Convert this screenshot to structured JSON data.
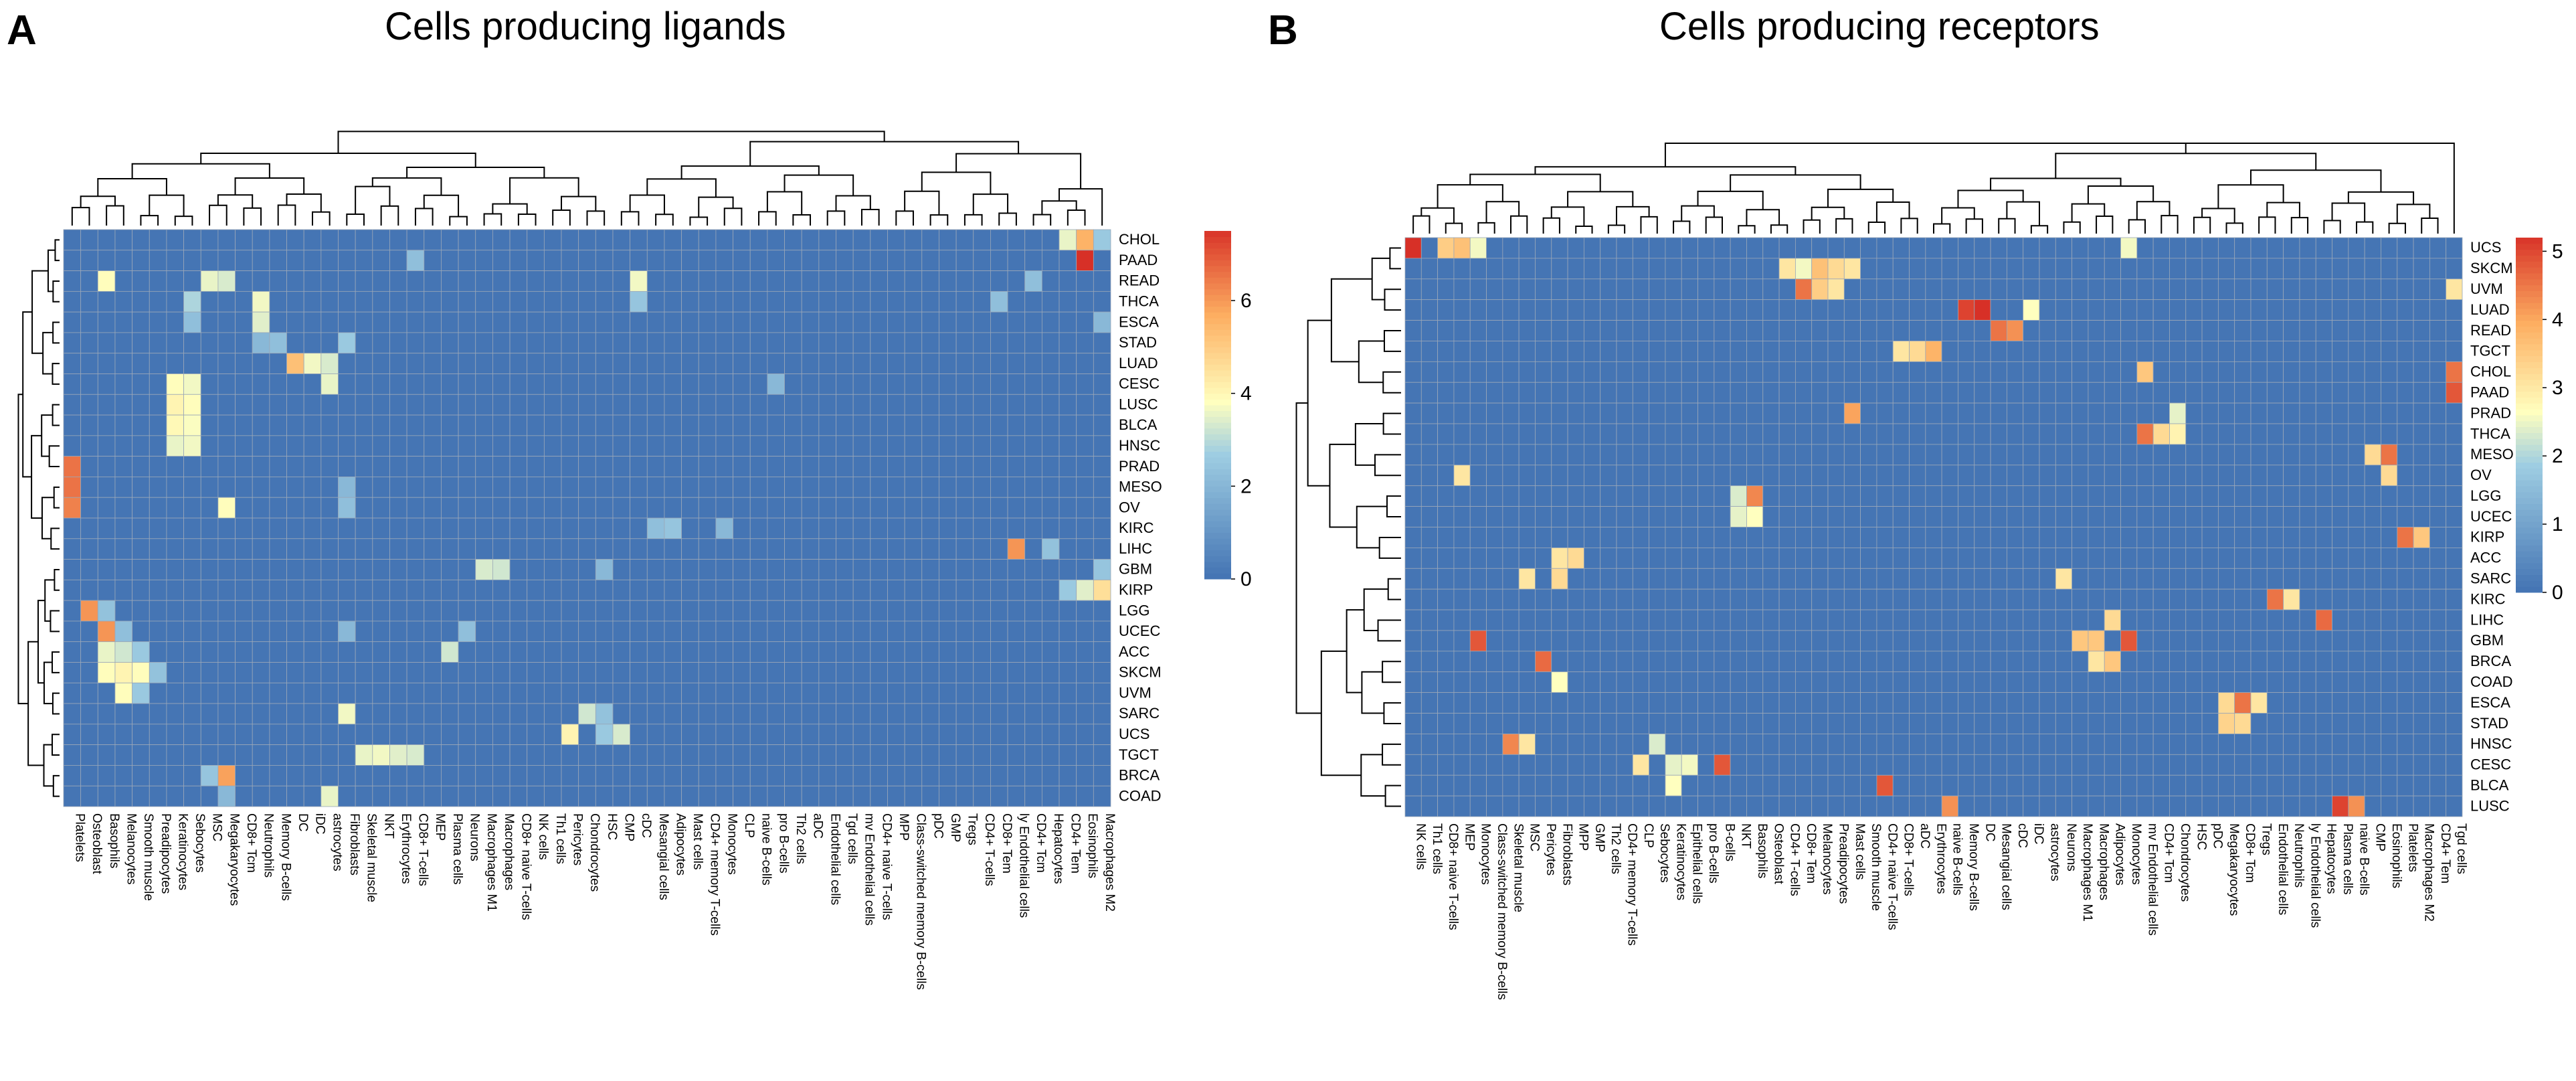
{
  "chart_data": [
    {
      "type": "heatmap",
      "panel_label": "A",
      "title": "Cells producing ligands",
      "rows": [
        "CHOL",
        "PAAD",
        "READ",
        "THCA",
        "ESCA",
        "STAD",
        "LUAD",
        "CESC",
        "LUSC",
        "BLCA",
        "HNSC",
        "PRAD",
        "MESO",
        "OV",
        "KIRC",
        "LIHC",
        "GBM",
        "KIRP",
        "LGG",
        "UCEC",
        "ACC",
        "SKCM",
        "UVM",
        "SARC",
        "UCS",
        "TGCT",
        "BRCA",
        "COAD"
      ],
      "columns": [
        "Platelets",
        "Osteoblast",
        "Basophils",
        "Melanocytes",
        "Smooth muscle",
        "Preadipocytes",
        "Keratinocytes",
        "Sebocytes",
        "MSC",
        "Megakaryocytes",
        "CD8+ Tcm",
        "Neutrophils",
        "Memory B-cells",
        "DC",
        "iDC",
        "astrocytes",
        "Fibroblasts",
        "Skeletal muscle",
        "NKT",
        "Erythrocytes",
        "CD8+ T-cells",
        "MEP",
        "Plasma cells",
        "Neurons",
        "Macrophages M1",
        "Macrophages",
        "CD8+ naive T-cells",
        "NK cells",
        "Th1 cells",
        "Pericytes",
        "Chondrocytes",
        "HSC",
        "CMP",
        "cDC",
        "Mesangial cells",
        "Adipocytes",
        "Mast cells",
        "CD4+ memory T-cells",
        "Monocytes",
        "CLP",
        "naive B-cells",
        "pro B-cells",
        "Th2 cells",
        "aDC",
        "Endothelial cells",
        "Tgd cells",
        "mv Endothelial cells",
        "CD4+ naive T-cells",
        "MPP",
        "Class-switched memory B-cells",
        "pDC",
        "GMP",
        "Tregs",
        "CD4+ T-cells",
        "CD8+ Tem",
        "ly Endothelial cells",
        "CD4+ Tcm",
        "Hepatocytes",
        "CD4+ Tem",
        "Eosinophils",
        "Macrophages M2"
      ],
      "colorbar": {
        "min": 0,
        "max": 7.5,
        "ticks": [
          0,
          2,
          4,
          6
        ]
      },
      "hot_cells": [
        {
          "row": "CHOL",
          "col": "Eosinophils",
          "value": 5.5
        },
        {
          "row": "CHOL",
          "col": "CD4+ Tem",
          "value": 3.5
        },
        {
          "row": "CHOL",
          "col": "Macrophages M2",
          "value": 2.5
        },
        {
          "row": "PAAD",
          "col": "Eosinophils",
          "value": 7.5
        },
        {
          "row": "PAAD",
          "col": "CD8+ T-cells",
          "value": 2.2
        },
        {
          "row": "READ",
          "col": "Basophils",
          "value": 3.8
        },
        {
          "row": "READ",
          "col": "MSC",
          "value": 3.5
        },
        {
          "row": "READ",
          "col": "Megakaryocytes",
          "value": 3.3
        },
        {
          "row": "READ",
          "col": "cDC",
          "value": 3.6
        },
        {
          "row": "READ",
          "col": "CD4+ Tcm",
          "value": 2.2
        },
        {
          "row": "THCA",
          "col": "Sebocytes",
          "value": 2.8
        },
        {
          "row": "THCA",
          "col": "Neutrophils",
          "value": 3.6
        },
        {
          "row": "THCA",
          "col": "cDC",
          "value": 2.4
        },
        {
          "row": "THCA",
          "col": "CD8+ Tem",
          "value": 2.2
        },
        {
          "row": "ESCA",
          "col": "Sebocytes",
          "value": 2.2
        },
        {
          "row": "ESCA",
          "col": "Neutrophils",
          "value": 3.4
        },
        {
          "row": "ESCA",
          "col": "Macrophages M2",
          "value": 2.0
        },
        {
          "row": "STAD",
          "col": "Memory B-cells",
          "value": 2.2
        },
        {
          "row": "STAD",
          "col": "Neutrophils",
          "value": 2.0
        },
        {
          "row": "STAD",
          "col": "Fibroblasts",
          "value": 2.5
        },
        {
          "row": "LUAD",
          "col": "DC",
          "value": 5.2
        },
        {
          "row": "LUAD",
          "col": "iDC",
          "value": 3.6
        },
        {
          "row": "LUAD",
          "col": "astrocytes",
          "value": 3.3
        },
        {
          "row": "CESC",
          "col": "Keratinocytes",
          "value": 3.8
        },
        {
          "row": "CESC",
          "col": "Sebocytes",
          "value": 3.6
        },
        {
          "row": "CESC",
          "col": "astrocytes",
          "value": 3.5
        },
        {
          "row": "CESC",
          "col": "pro B-cells",
          "value": 2.0
        },
        {
          "row": "LUSC",
          "col": "Keratinocytes",
          "value": 4.0
        },
        {
          "row": "LUSC",
          "col": "Sebocytes",
          "value": 3.8
        },
        {
          "row": "BLCA",
          "col": "Keratinocytes",
          "value": 3.9
        },
        {
          "row": "BLCA",
          "col": "Sebocytes",
          "value": 3.7
        },
        {
          "row": "HNSC",
          "col": "Keratinocytes",
          "value": 3.5
        },
        {
          "row": "HNSC",
          "col": "Sebocytes",
          "value": 3.6
        },
        {
          "row": "PRAD",
          "col": "Platelets",
          "value": 6.5
        },
        {
          "row": "MESO",
          "col": "Platelets",
          "value": 6.5
        },
        {
          "row": "MESO",
          "col": "Fibroblasts",
          "value": 2.0
        },
        {
          "row": "OV",
          "col": "Platelets",
          "value": 6.3
        },
        {
          "row": "OV",
          "col": "Megakaryocytes",
          "value": 3.8
        },
        {
          "row": "OV",
          "col": "Fibroblasts",
          "value": 2.2
        },
        {
          "row": "KIRC",
          "col": "Mesangial cells",
          "value": 2.2
        },
        {
          "row": "KIRC",
          "col": "Adipocytes",
          "value": 2.4
        },
        {
          "row": "KIRC",
          "col": "Monocytes",
          "value": 2.0
        },
        {
          "row": "LIHC",
          "col": "ly Endothelial cells",
          "value": 6.0
        },
        {
          "row": "LIHC",
          "col": "Hepatocytes",
          "value": 2.3
        },
        {
          "row": "GBM",
          "col": "Macrophages M1",
          "value": 3.3
        },
        {
          "row": "GBM",
          "col": "Macrophages",
          "value": 3.2
        },
        {
          "row": "GBM",
          "col": "HSC",
          "value": 2.0
        },
        {
          "row": "GBM",
          "col": "Macrophages M2",
          "value": 2.4
        },
        {
          "row": "KIRP",
          "col": "CD4+ Tem",
          "value": 2.5
        },
        {
          "row": "KIRP",
          "col": "Eosinophils",
          "value": 3.4
        },
        {
          "row": "KIRP",
          "col": "Macrophages M2",
          "value": 4.5
        },
        {
          "row": "LGG",
          "col": "Osteoblast",
          "value": 6.0
        },
        {
          "row": "LGG",
          "col": "Basophils",
          "value": 2.3
        },
        {
          "row": "UCEC",
          "col": "Basophils",
          "value": 6.0
        },
        {
          "row": "UCEC",
          "col": "Melanocytes",
          "value": 2.2
        },
        {
          "row": "UCEC",
          "col": "Fibroblasts",
          "value": 2.0
        },
        {
          "row": "UCEC",
          "col": "Neurons",
          "value": 2.2
        },
        {
          "row": "ACC",
          "col": "Basophils",
          "value": 3.5
        },
        {
          "row": "ACC",
          "col": "Melanocytes",
          "value": 3.2
        },
        {
          "row": "ACC",
          "col": "Smooth muscle",
          "value": 2.5
        },
        {
          "row": "ACC",
          "col": "Plasma cells",
          "value": 3.2
        },
        {
          "row": "SKCM",
          "col": "Basophils",
          "value": 3.8
        },
        {
          "row": "SKCM",
          "col": "Melanocytes",
          "value": 4.0
        },
        {
          "row": "SKCM",
          "col": "Smooth muscle",
          "value": 3.8
        },
        {
          "row": "SKCM",
          "col": "Preadipocytes",
          "value": 2.3
        },
        {
          "row": "UVM",
          "col": "Melanocytes",
          "value": 3.8
        },
        {
          "row": "UVM",
          "col": "Smooth muscle",
          "value": 2.5
        },
        {
          "row": "SARC",
          "col": "Fibroblasts",
          "value": 3.6
        },
        {
          "row": "SARC",
          "col": "Chondrocytes",
          "value": 3.2
        },
        {
          "row": "SARC",
          "col": "HSC",
          "value": 2.3
        },
        {
          "row": "UCS",
          "col": "Pericytes",
          "value": 4.0
        },
        {
          "row": "UCS",
          "col": "CMP",
          "value": 3.3
        },
        {
          "row": "UCS",
          "col": "HSC",
          "value": 2.5
        },
        {
          "row": "TGCT",
          "col": "Skeletal muscle",
          "value": 3.5
        },
        {
          "row": "TGCT",
          "col": "NKT",
          "value": 3.6
        },
        {
          "row": "TGCT",
          "col": "CD8+ T-cells",
          "value": 3.3
        },
        {
          "row": "TGCT",
          "col": "Erythrocytes",
          "value": 3.4
        },
        {
          "row": "BRCA",
          "col": "Megakaryocytes",
          "value": 5.8
        },
        {
          "row": "BRCA",
          "col": "MSC",
          "value": 2.4
        },
        {
          "row": "COAD",
          "col": "astrocytes",
          "value": 3.5
        },
        {
          "row": "COAD",
          "col": "Megakaryocytes",
          "value": 2.0
        }
      ]
    },
    {
      "type": "heatmap",
      "panel_label": "B",
      "title": "Cells producing receptors",
      "rows": [
        "UCS",
        "SKCM",
        "UVM",
        "LUAD",
        "READ",
        "TGCT",
        "CHOL",
        "PAAD",
        "PRAD",
        "THCA",
        "MESO",
        "OV",
        "LGG",
        "UCEC",
        "KIRP",
        "ACC",
        "SARC",
        "KIRC",
        "LIHC",
        "GBM",
        "BRCA",
        "COAD",
        "ESCA",
        "STAD",
        "HNSC",
        "CESC",
        "BLCA",
        "LUSC"
      ],
      "columns": [
        "NK cells",
        "Th1 cells",
        "CD8+ naive T-cells",
        "MEP",
        "Monocytes",
        "Class-switched memory B-cells",
        "Skeletal muscle",
        "MSC",
        "Pericytes",
        "Fibroblasts",
        "MPP",
        "GMP",
        "Th2 cells",
        "CD4+ memory T-cells",
        "CLP",
        "Sebocytes",
        "Keratinocytes",
        "Epithelial cells",
        "pro B-cells",
        "B-cells",
        "NKT",
        "Basophils",
        "Osteoblast",
        "CD4+ T-cells",
        "CD8+ Tem",
        "Melanocytes",
        "Preadipocytes",
        "Mast cells",
        "Smooth muscle",
        "CD4+ naive T-cells",
        "CD8+ T-cells",
        "aDC",
        "Erythrocytes",
        "naive B-cells",
        "Memory B-cells",
        "DC",
        "Mesangial cells",
        "cDC",
        "iDC",
        "astrocytes",
        "Neurons",
        "Macrophages M1",
        "Macrophages",
        "Adipocytes",
        "Monocytes",
        "mv Endothelial cells",
        "CD4+ Tcm",
        "Chondrocytes",
        "HSC",
        "pDC",
        "Megakaryocytes",
        "CD8+ Tcm",
        "Tregs",
        "Endothelial cells",
        "Neutrophils",
        "ly Endothelial cells",
        "Hepatocytes",
        "Plasma cells",
        "naive B-cells",
        "CMP",
        "Eosinophils",
        "Platelets",
        "Macrophages M2",
        "CD4+ Tem",
        "Tgd cells"
      ],
      "colorbar": {
        "min": 0,
        "max": 5.2,
        "ticks": [
          0,
          1,
          2,
          3,
          4,
          5
        ]
      },
      "hot_cells": [
        {
          "row": "UCS",
          "col": "NK cells",
          "value": 5.2
        },
        {
          "row": "UCS",
          "col": "CD8+ naive T-cells",
          "value": 3.4
        },
        {
          "row": "UCS",
          "col": "MEP",
          "value": 3.6
        },
        {
          "row": "UCS",
          "col": "Monocytes",
          "value": 2.5
        },
        {
          "row": "SKCM",
          "col": "CD4+ T-cells",
          "value": 3.0
        },
        {
          "row": "SKCM",
          "col": "CD8+ Tem",
          "value": 2.5
        },
        {
          "row": "SKCM",
          "col": "Melanocytes",
          "value": 3.6
        },
        {
          "row": "SKCM",
          "col": "Preadipocytes",
          "value": 3.2
        },
        {
          "row": "SKCM",
          "col": "Mast cells",
          "value": 3.0
        },
        {
          "row": "UVM",
          "col": "CD8+ Tem",
          "value": 4.5
        },
        {
          "row": "UVM",
          "col": "Melanocytes",
          "value": 3.4
        },
        {
          "row": "UVM",
          "col": "Preadipocytes",
          "value": 3.0
        },
        {
          "row": "UVM",
          "col": "Tgd cells",
          "value": 3.0
        },
        {
          "row": "LUAD",
          "col": "Memory B-cells",
          "value": 5.0
        },
        {
          "row": "LUAD",
          "col": "DC",
          "value": 5.2
        },
        {
          "row": "LUAD",
          "col": "iDC",
          "value": 2.6
        },
        {
          "row": "READ",
          "col": "Mesangial cells",
          "value": 4.5
        },
        {
          "row": "READ",
          "col": "cDC",
          "value": 4.2
        },
        {
          "row": "TGCT",
          "col": "CD8+ T-cells",
          "value": 3.0
        },
        {
          "row": "TGCT",
          "col": "aDC",
          "value": 3.2
        },
        {
          "row": "TGCT",
          "col": "Erythrocytes",
          "value": 3.8
        },
        {
          "row": "CHOL",
          "col": "Tgd cells",
          "value": 4.5
        },
        {
          "row": "CHOL",
          "col": "mv Endothelial cells",
          "value": 3.5
        },
        {
          "row": "PAAD",
          "col": "Tgd cells",
          "value": 4.8
        },
        {
          "row": "PRAD",
          "col": "Chondrocytes",
          "value": 2.4
        },
        {
          "row": "PRAD",
          "col": "Mast cells",
          "value": 4.0
        },
        {
          "row": "THCA",
          "col": "mv Endothelial cells",
          "value": 4.5
        },
        {
          "row": "THCA",
          "col": "CD4+ Tcm",
          "value": 3.2
        },
        {
          "row": "THCA",
          "col": "Chondrocytes",
          "value": 2.8
        },
        {
          "row": "MESO",
          "col": "Eosinophils",
          "value": 4.5
        },
        {
          "row": "MESO",
          "col": "CMP",
          "value": 3.2
        },
        {
          "row": "OV",
          "col": "MEP",
          "value": 3.0
        },
        {
          "row": "OV",
          "col": "Eosinophils",
          "value": 3.2
        },
        {
          "row": "LGG",
          "col": "Basophils",
          "value": 4.3
        },
        {
          "row": "LGG",
          "col": "NKT",
          "value": 2.3
        },
        {
          "row": "UCEC",
          "col": "NKT",
          "value": 2.4
        },
        {
          "row": "UCEC",
          "col": "Basophils",
          "value": 2.6
        },
        {
          "row": "KIRP",
          "col": "Platelets",
          "value": 4.5
        },
        {
          "row": "KIRP",
          "col": "Macrophages M2",
          "value": 3.5
        },
        {
          "row": "ACC",
          "col": "Fibroblasts",
          "value": 3.0
        },
        {
          "row": "ACC",
          "col": "MPP",
          "value": 3.2
        },
        {
          "row": "SARC",
          "col": "MSC",
          "value": 3.0
        },
        {
          "row": "SARC",
          "col": "Fibroblasts",
          "value": 3.2
        },
        {
          "row": "SARC",
          "col": "Neurons",
          "value": 3.0
        },
        {
          "row": "KIRC",
          "col": "Endothelial cells",
          "value": 4.5
        },
        {
          "row": "KIRC",
          "col": "Neutrophils",
          "value": 3.0
        },
        {
          "row": "LIHC",
          "col": "Hepatocytes",
          "value": 4.6
        },
        {
          "row": "LIHC",
          "col": "Adipocytes",
          "value": 3.2
        },
        {
          "row": "GBM",
          "col": "Macrophages M1",
          "value": 3.5
        },
        {
          "row": "GBM",
          "col": "Macrophages",
          "value": 3.5
        },
        {
          "row": "GBM",
          "col": "Monocytes",
          "value": 4.8
        },
        {
          "row": "BRCA",
          "col": "Pericytes",
          "value": 4.6
        },
        {
          "row": "BRCA",
          "col": "Macrophages",
          "value": 3.0
        },
        {
          "row": "BRCA",
          "col": "Adipocytes",
          "value": 3.5
        },
        {
          "row": "COAD",
          "col": "Fibroblasts",
          "value": 2.6
        },
        {
          "row": "ESCA",
          "col": "Megakaryocytes",
          "value": 3.2
        },
        {
          "row": "ESCA",
          "col": "CD8+ Tcm",
          "value": 4.5
        },
        {
          "row": "ESCA",
          "col": "Tregs",
          "value": 3.0
        },
        {
          "row": "STAD",
          "col": "Megakaryocytes",
          "value": 3.3
        },
        {
          "row": "STAD",
          "col": "CD8+ Tcm",
          "value": 3.2
        },
        {
          "row": "HNSC",
          "col": "Skeletal muscle",
          "value": 4.3
        },
        {
          "row": "HNSC",
          "col": "MSC",
          "value": 3.0
        },
        {
          "row": "HNSC",
          "col": "Sebocytes",
          "value": 2.3
        },
        {
          "row": "CESC",
          "col": "B-cells",
          "value": 4.8
        },
        {
          "row": "CESC",
          "col": "Epithelial cells",
          "value": 2.5
        },
        {
          "row": "CESC",
          "col": "Keratinocytes",
          "value": 2.4
        },
        {
          "row": "CESC",
          "col": "CLP",
          "value": 3.0
        },
        {
          "row": "BLCA",
          "col": "CD4+ naive T-cells",
          "value": 4.8
        },
        {
          "row": "BLCA",
          "col": "Keratinocytes",
          "value": 2.6
        },
        {
          "row": "LUSC",
          "col": "Plasma cells",
          "value": 5.0
        },
        {
          "row": "LUSC",
          "col": "naive B-cells",
          "value": 4.2
        }
      ]
    }
  ]
}
